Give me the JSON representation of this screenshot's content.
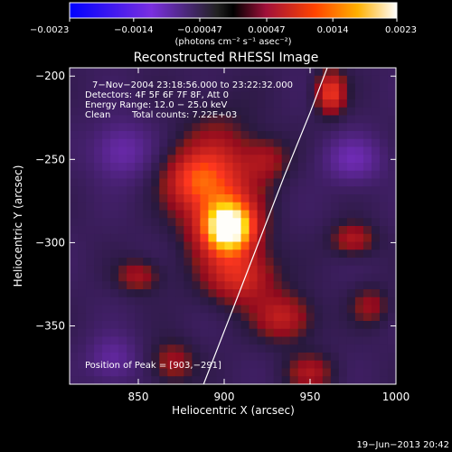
{
  "chart_data": {
    "type": "heatmap",
    "title": "Reconstructed RHESSI Image",
    "xlabel": "Heliocentric X (arcsec)",
    "ylabel": "Heliocentric Y (arcsec)",
    "xlim": [
      810,
      1000
    ],
    "ylim": [
      -385,
      -195
    ],
    "x_ticks": [
      850,
      900,
      950,
      1000
    ],
    "x_tick_labels": [
      "850",
      "900",
      "950",
      "1000"
    ],
    "y_ticks": [
      -200,
      -250,
      -300,
      -350
    ],
    "y_tick_labels": [
      "−200",
      "−250",
      "−300",
      "−350"
    ],
    "colorbar": {
      "range": [
        -0.0023,
        0.0023
      ],
      "ticks": [
        -0.0023,
        -0.0014,
        -0.00047,
        0.00047,
        0.0014,
        0.0023
      ],
      "tick_labels": [
        "−0.0023",
        "−0.0014",
        "−0.00047",
        "0.00047",
        "0.0014",
        "0.0023"
      ],
      "units_label": "(photons cm⁻² s⁻¹ asec⁻²)"
    },
    "annotations": {
      "time_range": "7−Nov−2004 23:18:56.000 to 23:22:32.000",
      "detectors": "Detectors: 4F 5F 6F 7F 8F, Att 0",
      "energy": "Energy Range: 12.0 − 25.0 keV",
      "method": "Clean",
      "counts": "Total counts: 7.22E+03",
      "peak": "Position of Peak = [903,−291]"
    },
    "peak_position": [
      903,
      -291
    ],
    "sources": [
      {
        "x": 903,
        "y": -291,
        "amp": 0.0023,
        "sx": 10,
        "sy": 10
      },
      {
        "x": 897,
        "y": -270,
        "amp": 0.0012,
        "sx": 16,
        "sy": 28
      },
      {
        "x": 880,
        "y": -262,
        "amp": 0.0008,
        "sx": 12,
        "sy": 12
      },
      {
        "x": 910,
        "y": -320,
        "amp": 0.001,
        "sx": 14,
        "sy": 12
      },
      {
        "x": 935,
        "y": -345,
        "amp": 0.0009,
        "sx": 12,
        "sy": 10
      },
      {
        "x": 962,
        "y": -210,
        "amp": 0.0013,
        "sx": 6,
        "sy": 9
      },
      {
        "x": 850,
        "y": -320,
        "amp": 0.0007,
        "sx": 9,
        "sy": 7
      },
      {
        "x": 975,
        "y": -298,
        "amp": 0.0008,
        "sx": 9,
        "sy": 7
      },
      {
        "x": 870,
        "y": -372,
        "amp": 0.0007,
        "sx": 9,
        "sy": 9
      },
      {
        "x": 950,
        "y": -378,
        "amp": 0.0007,
        "sx": 10,
        "sy": 8
      },
      {
        "x": 925,
        "y": -250,
        "amp": 0.0006,
        "sx": 9,
        "sy": 9
      },
      {
        "x": 985,
        "y": -338,
        "amp": 0.0006,
        "sx": 8,
        "sy": 8
      },
      {
        "x": 840,
        "y": -245,
        "amp": -0.0007,
        "sx": 12,
        "sy": 12
      },
      {
        "x": 975,
        "y": -250,
        "amp": -0.0007,
        "sx": 12,
        "sy": 10
      },
      {
        "x": 835,
        "y": -370,
        "amp": -0.0006,
        "sx": 10,
        "sy": 10
      }
    ],
    "limb": [
      [
        888,
        -385
      ],
      [
        905,
        -340
      ],
      [
        920,
        -300
      ],
      [
        935,
        -260
      ],
      [
        950,
        -222
      ],
      [
        960,
        -195
      ]
    ],
    "grid": false
  },
  "timestamp": "19−Jun−2013 20:42"
}
